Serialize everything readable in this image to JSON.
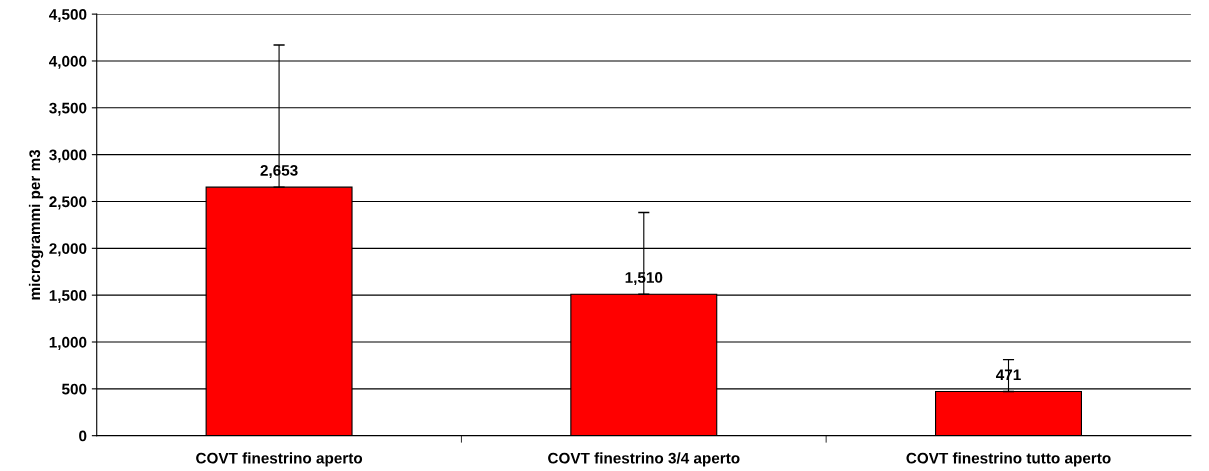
{
  "chart_data": {
    "type": "bar",
    "ylabel": "microgrammi per m3",
    "categories": [
      "COVT finestrino aperto",
      "COVT finestrino 3/4 aperto",
      "COVT finestrino tutto aperto"
    ],
    "values": [
      2653,
      1510,
      471
    ],
    "color": "#ff0000",
    "errors": [
      [
        2653,
        4170
      ],
      [
        1510,
        2383
      ],
      [
        471,
        812
      ]
    ],
    "value_labels": [
      "2,653",
      "1,510",
      "471"
    ],
    "ylim": [
      0,
      4500
    ],
    "yticks": [
      {
        "value": 0,
        "label": "0"
      },
      {
        "value": 500,
        "label": "500"
      },
      {
        "value": 1000,
        "label": "1,000"
      },
      {
        "value": 1500,
        "label": "1,500"
      },
      {
        "value": 2000,
        "label": "2,000"
      },
      {
        "value": 2500,
        "label": "2,500"
      },
      {
        "value": 3000,
        "label": "3,000"
      },
      {
        "value": 3500,
        "label": "3,500"
      },
      {
        "value": 4000,
        "label": "4,000"
      },
      {
        "value": 4500,
        "label": "4,500"
      }
    ],
    "grid": "y"
  }
}
